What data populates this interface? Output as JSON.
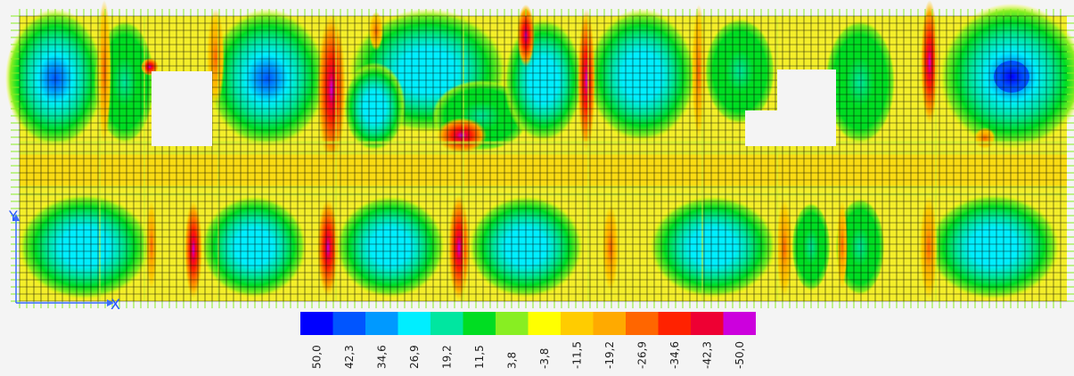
{
  "axes": {
    "x_label": "X",
    "y_label": "Y"
  },
  "legend": {
    "values": [
      "50,0",
      "42,3",
      "34,6",
      "26,9",
      "19,2",
      "11,5",
      "3,8",
      "-3,8",
      "-11,5",
      "-19,2",
      "-26,9",
      "-34,6",
      "-42,3",
      "-50,0"
    ],
    "colors": [
      "#0000ff",
      "#0055ff",
      "#0099ff",
      "#00eeff",
      "#00e6a0",
      "#00dd22",
      "#88ee22",
      "#ffff00",
      "#ffcc00",
      "#ffaa00",
      "#ff6600",
      "#ff2200",
      "#ee0033",
      "#cc00dd"
    ]
  },
  "contour": {
    "background_color": "#f4ee2a",
    "grid_color": "#000000",
    "edge_tick_color": "#88ee22"
  }
}
